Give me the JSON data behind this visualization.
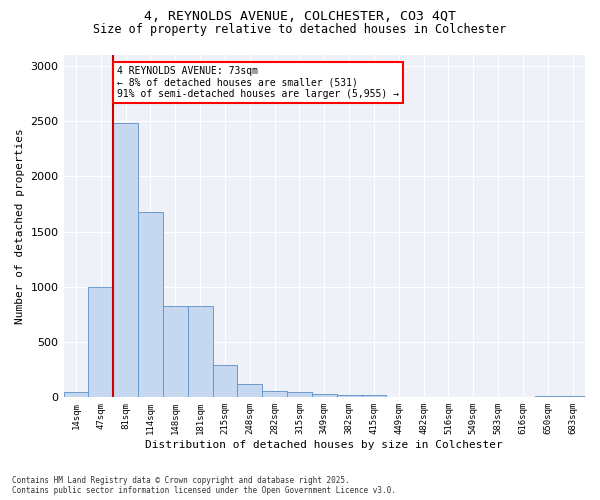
{
  "title_line1": "4, REYNOLDS AVENUE, COLCHESTER, CO3 4QT",
  "title_line2": "Size of property relative to detached houses in Colchester",
  "xlabel": "Distribution of detached houses by size in Colchester",
  "ylabel": "Number of detached properties",
  "bar_color": "#c5d8f0",
  "bar_edge_color": "#5b8fc9",
  "annotation_text": "4 REYNOLDS AVENUE: 73sqm\n← 8% of detached houses are smaller (531)\n91% of semi-detached houses are larger (5,955) →",
  "vline_color": "#cc0000",
  "footer": "Contains HM Land Registry data © Crown copyright and database right 2025.\nContains public sector information licensed under the Open Government Licence v3.0.",
  "categories": [
    "14sqm",
    "47sqm",
    "81sqm",
    "114sqm",
    "148sqm",
    "181sqm",
    "215sqm",
    "248sqm",
    "282sqm",
    "315sqm",
    "349sqm",
    "382sqm",
    "415sqm",
    "449sqm",
    "482sqm",
    "516sqm",
    "549sqm",
    "583sqm",
    "616sqm",
    "650sqm",
    "683sqm"
  ],
  "values": [
    50,
    1000,
    2480,
    1680,
    830,
    830,
    290,
    120,
    55,
    45,
    30,
    20,
    20,
    5,
    5,
    3,
    3,
    0,
    0,
    15,
    15
  ],
  "ylim": [
    0,
    3100
  ],
  "yticks": [
    0,
    500,
    1000,
    1500,
    2000,
    2500,
    3000
  ],
  "background_color": "#eef2f8"
}
